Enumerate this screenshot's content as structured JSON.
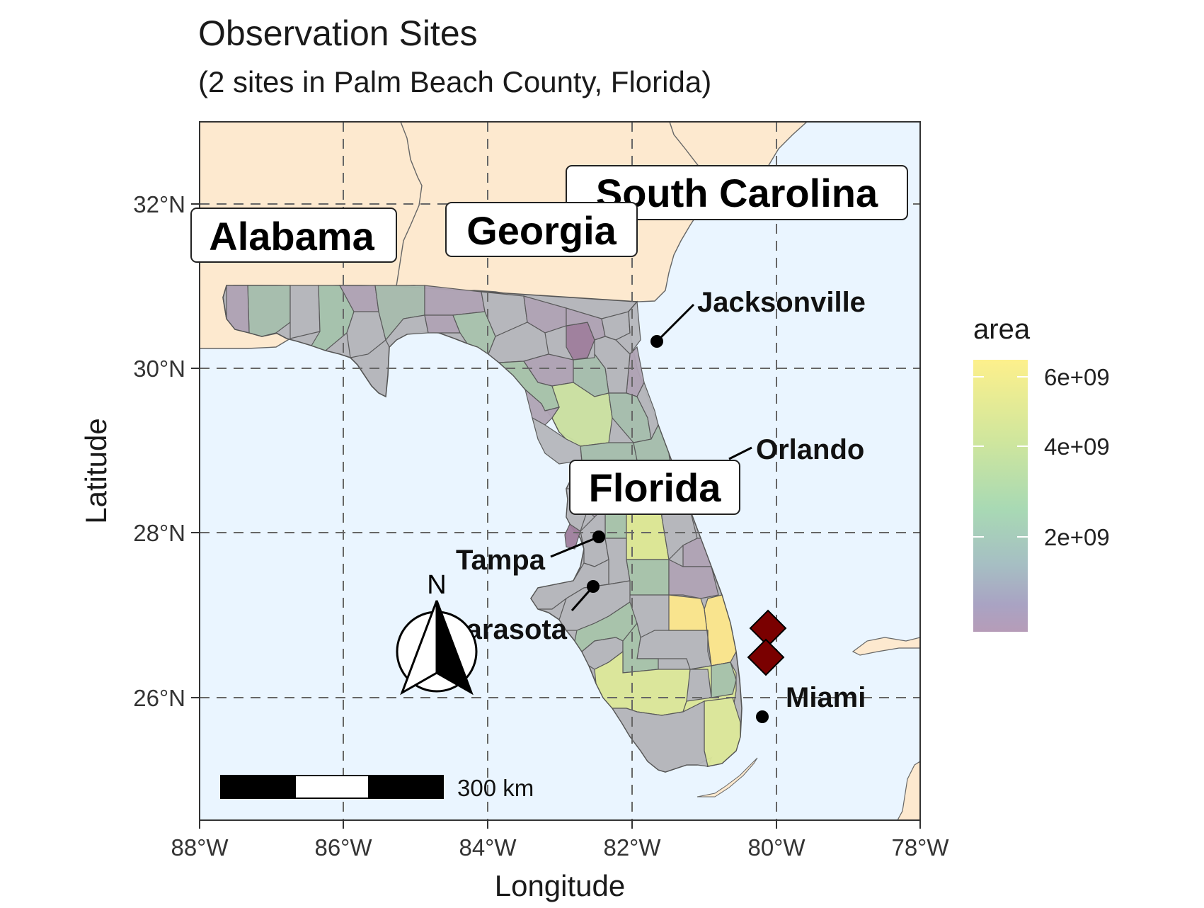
{
  "title": "Observation Sites",
  "subtitle": "(2 sites in Palm Beach County, Florida)",
  "axes": {
    "xlabel": "Longitude",
    "ylabel": "Latitude",
    "x_ticks": [
      "88°W",
      "86°W",
      "84°W",
      "82°W",
      "80°W",
      "78°W"
    ],
    "y_ticks": [
      "32°N",
      "30°N",
      "28°N",
      "26°N"
    ]
  },
  "state_labels": [
    "South Carolina",
    "Alabama",
    "Georgia",
    "Florida"
  ],
  "cities": [
    {
      "name": "Jacksonville",
      "lon": -81.66,
      "lat": 30.33
    },
    {
      "name": "Orlando",
      "lon": -81.38,
      "lat": 28.54
    },
    {
      "name": "Tampa",
      "lon": -82.46,
      "lat": 27.95
    },
    {
      "name": "Sarasota",
      "lon": -82.53,
      "lat": 27.34
    },
    {
      "name": "Miami",
      "lon": -80.19,
      "lat": 25.77
    }
  ],
  "sites": [
    {
      "lon": -80.1,
      "lat": 26.83
    },
    {
      "lon": -80.15,
      "lat": 26.48
    }
  ],
  "legend": {
    "title": "area",
    "labels": [
      "6e+09",
      "4e+09",
      "2e+09"
    ],
    "colors": [
      "#fdf08c",
      "#a8d9b4",
      "#b69cb8"
    ]
  },
  "scale_bar": {
    "label": "300 km"
  },
  "north_arrow": {
    "label": "N"
  },
  "colors": {
    "ocean": "#eaf5ff",
    "land": "#fde9cf",
    "site_marker": "#7a0000"
  }
}
